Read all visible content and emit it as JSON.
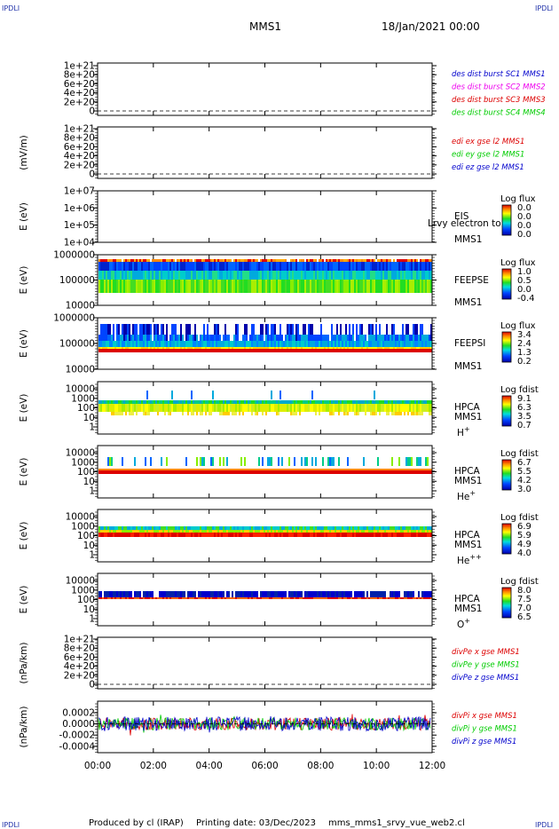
{
  "header": {
    "corner_tl": "IPDLI",
    "corner_tr": "IPDLI",
    "corner_bl": "IPDLI",
    "corner_br": "IPDLI",
    "spacecraft": "MMS1",
    "date": "18/Jan/2021 00:00"
  },
  "footer": {
    "produced_by": "Produced by cl (IRAP)",
    "printing_date": "Printing date: 03/Dec/2023",
    "file": "mms_mms1_srvy_vue_web2.cl"
  },
  "colors": {
    "red": "#dd0000",
    "magenta": "#ee00ee",
    "green": "#00cc00",
    "blue": "#0000cc"
  },
  "chart_data": [
    {
      "type": "line",
      "id": "des-dist",
      "ylabel": "",
      "yticks": [
        "1e+21",
        "8e+20",
        "6e+20",
        "4e+20",
        "2e+20",
        "0"
      ],
      "ylim": [
        0,
        1.1e+21
      ],
      "legend": [
        {
          "name": "des dist burst SC1 MMS1",
          "color": "#0000cc"
        },
        {
          "name": "des dist burst SC2 MMS2",
          "color": "#ee00ee"
        },
        {
          "name": "des dist burst SC3 MMS3",
          "color": "#dd0000"
        },
        {
          "name": "des dist burst SC4 MMS4",
          "color": "#00cc00"
        }
      ],
      "series_values": "all zero (flat dashed line at 0)"
    },
    {
      "type": "line",
      "id": "edi",
      "ylabel": "(mV/m)",
      "yticks": [
        "1e+21",
        "8e+20",
        "6e+20",
        "4e+20",
        "2e+20",
        "0"
      ],
      "ylim": [
        0,
        1.1e+21
      ],
      "legend": [
        {
          "name": "edi ex gse l2 MMS1",
          "color": "#dd0000"
        },
        {
          "name": "edi ey gse l2 MMS1",
          "color": "#00cc00"
        },
        {
          "name": "edi ez gse l2 MMS1",
          "color": "#0000cc"
        }
      ]
    },
    {
      "type": "heatmap",
      "id": "eis",
      "ylabel": "E (eV)",
      "yticks": [
        "1e+07",
        "1e+06",
        "1e+05",
        "1e+04"
      ],
      "instrument": "EIS",
      "overlay": "Lrvy electron to",
      "sc": "MMS1",
      "colorbar_title": "Log flux",
      "colorbar_ticks": [
        "0.0",
        "0.0",
        "0.0",
        "0.0"
      ]
    },
    {
      "type": "heatmap",
      "id": "feepse",
      "ylabel": "E (eV)",
      "yticks": [
        "1000000",
        "100000",
        "10000"
      ],
      "instrument": "FEEPSE",
      "sc": "MMS1",
      "colorbar_title": "Log flux",
      "colorbar_ticks": [
        "1.0",
        "0.5",
        "0.0",
        "-0.4"
      ]
    },
    {
      "type": "heatmap",
      "id": "feepsi",
      "ylabel": "E (eV)",
      "yticks": [
        "1000000",
        "100000",
        "10000"
      ],
      "instrument": "FEEPSI",
      "sc": "MMS1",
      "colorbar_title": "Log flux",
      "colorbar_ticks": [
        "3.4",
        "2.4",
        "1.3",
        "0.2"
      ]
    },
    {
      "type": "heatmap",
      "id": "hpca-h",
      "ylabel": "E (eV)",
      "yticks": [
        "10000",
        "1000",
        "100",
        "10",
        "1"
      ],
      "instrument": "HPCA",
      "sc": "MMS1",
      "species": "H",
      "charge": "+",
      "colorbar_title": "Log fdist",
      "colorbar_ticks": [
        "9.1",
        "6.3",
        "3.5",
        "0.7"
      ]
    },
    {
      "type": "heatmap",
      "id": "hpca-he",
      "ylabel": "E (eV)",
      "yticks": [
        "10000",
        "1000",
        "100",
        "10",
        "1"
      ],
      "instrument": "HPCA",
      "sc": "MMS1",
      "species": "He",
      "charge": "+",
      "colorbar_title": "Log fdist",
      "colorbar_ticks": [
        "6.7",
        "5.5",
        "4.2",
        "3.0"
      ]
    },
    {
      "type": "heatmap",
      "id": "hpca-he2",
      "ylabel": "E (eV)",
      "yticks": [
        "10000",
        "1000",
        "100",
        "10",
        "1"
      ],
      "instrument": "HPCA",
      "sc": "MMS1",
      "species": "He",
      "charge": "++",
      "colorbar_title": "Log fdist",
      "colorbar_ticks": [
        "6.9",
        "5.9",
        "4.9",
        "4.0"
      ]
    },
    {
      "type": "heatmap",
      "id": "hpca-o",
      "ylabel": "E (eV)",
      "yticks": [
        "10000",
        "1000",
        "100",
        "10",
        "1"
      ],
      "instrument": "HPCA",
      "sc": "MMS1",
      "species": "O",
      "charge": "+",
      "colorbar_title": "Log fdist",
      "colorbar_ticks": [
        "8.0",
        "7.5",
        "7.0",
        "6.5"
      ]
    },
    {
      "type": "line",
      "id": "divpe",
      "ylabel": "(nPa/km)",
      "yticks": [
        "1e+21",
        "8e+20",
        "6e+20",
        "4e+20",
        "2e+20",
        "0"
      ],
      "ylim": [
        0,
        1.1e+21
      ],
      "legend": [
        {
          "name": "divPe x gse MMS1",
          "color": "#dd0000"
        },
        {
          "name": "divPe y gse MMS1",
          "color": "#00cc00"
        },
        {
          "name": "divPe z gse MMS1",
          "color": "#0000cc"
        }
      ]
    },
    {
      "type": "line",
      "id": "divpi",
      "ylabel": "(nPa/km)",
      "yticks": [
        "0.0002",
        "0.0000",
        "-0.0002",
        "-0.0004"
      ],
      "ylim": [
        -0.00053,
        0.00033
      ],
      "legend": [
        {
          "name": "divPi x gse MMS1",
          "color": "#dd0000"
        },
        {
          "name": "divPi y gse MMS1",
          "color": "#00cc00"
        },
        {
          "name": "divPi z gse MMS1",
          "color": "#0000cc"
        }
      ],
      "series_values": "noisy signal around 0, amplitude about 0.0002"
    }
  ],
  "time_axis": {
    "ticks": [
      "00:00",
      "02:00",
      "04:00",
      "06:00",
      "08:00",
      "10:00",
      "12:00"
    ]
  }
}
